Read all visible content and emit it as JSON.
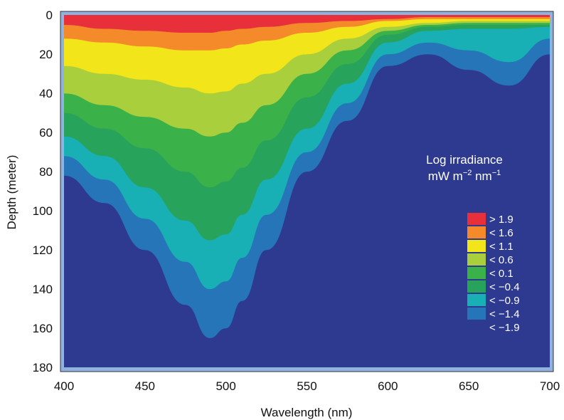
{
  "chart_data": {
    "type": "heatmap",
    "title": "",
    "xlabel": "Wavelength (nm)",
    "ylabel": "Depth (meter)",
    "xlim": [
      400,
      700
    ],
    "ylim": [
      0,
      180
    ],
    "y_inverted": true,
    "x_ticks": [
      400,
      450,
      500,
      550,
      600,
      650,
      700
    ],
    "y_ticks": [
      0,
      20,
      40,
      60,
      80,
      100,
      120,
      140,
      160,
      180
    ],
    "grid": false,
    "legend_position": "right",
    "legend": {
      "title_line1": "Log irradiance",
      "title_unit_base": "mW m",
      "title_unit_exp1": "−2",
      "title_unit_mid": " nm",
      "title_unit_exp2": "−1",
      "entries": [
        {
          "label": "> 1.9",
          "color": "#e8303a"
        },
        {
          "label": "< 1.6",
          "color": "#f58a2a"
        },
        {
          "label": "< 1.1",
          "color": "#f2e51a"
        },
        {
          "label": "< 0.6",
          "color": "#a9cf3c"
        },
        {
          "label": "< 0.1",
          "color": "#3bb14a"
        },
        {
          "label": "< −0.4",
          "color": "#27a35c"
        },
        {
          "label": "< −0.9",
          "color": "#19b0b5"
        },
        {
          "label": "< −1.4",
          "color": "#2675b8"
        },
        {
          "label": "< −1.9",
          "color": "#2d3a8f"
        }
      ]
    },
    "levels": [
      1.9,
      1.6,
      1.1,
      0.6,
      0.1,
      -0.4,
      -0.9,
      -1.4,
      -1.9
    ],
    "level_colors": [
      "#e8303a",
      "#f58a2a",
      "#f2e51a",
      "#a9cf3c",
      "#3bb14a",
      "#27a35c",
      "#19b0b5",
      "#2675b8",
      "#2d3a8f"
    ],
    "background_color": "#2d3a8f",
    "frame_color": "#8fb2de",
    "contour_depths": {
      "wavelengths": [
        400,
        425,
        450,
        475,
        490,
        500,
        510,
        525,
        550,
        575,
        600,
        625,
        650,
        675,
        700
      ],
      "series": [
        {
          "level": "> 1.9",
          "depth": [
            5,
            7,
            8,
            9,
            9,
            8,
            7,
            6,
            4,
            3,
            2,
            1,
            1,
            1,
            1
          ]
        },
        {
          "level": "< 1.6",
          "depth": [
            12,
            14,
            16,
            18,
            18,
            17,
            15,
            13,
            9,
            6,
            3,
            2,
            2,
            2,
            2
          ]
        },
        {
          "level": "< 1.1",
          "depth": [
            26,
            30,
            33,
            37,
            40,
            39,
            35,
            30,
            20,
            12,
            6,
            4,
            3,
            3,
            3
          ]
        },
        {
          "level": "< 0.6",
          "depth": [
            40,
            46,
            52,
            58,
            62,
            60,
            55,
            46,
            30,
            18,
            8,
            5,
            4,
            4,
            4
          ]
        },
        {
          "level": "< 0.1",
          "depth": [
            50,
            58,
            68,
            80,
            88,
            85,
            78,
            64,
            42,
            25,
            10,
            6,
            5,
            5,
            5
          ]
        },
        {
          "level": "< −0.4",
          "depth": [
            62,
            72,
            88,
            105,
            115,
            112,
            102,
            84,
            58,
            35,
            14,
            8,
            7,
            7,
            6
          ]
        },
        {
          "level": "< −0.9",
          "depth": [
            72,
            84,
            104,
            126,
            140,
            136,
            124,
            102,
            70,
            45,
            20,
            14,
            18,
            24,
            12
          ]
        },
        {
          "level": "< −1.4",
          "depth": [
            82,
            96,
            120,
            148,
            165,
            160,
            146,
            120,
            80,
            54,
            26,
            20,
            28,
            36,
            20
          ]
        },
        {
          "level": "< −1.9",
          "depth": [
            90,
            104,
            132,
            162,
            178,
            174,
            160,
            132,
            88,
            60,
            32,
            26,
            34,
            44,
            28
          ]
        }
      ]
    }
  }
}
